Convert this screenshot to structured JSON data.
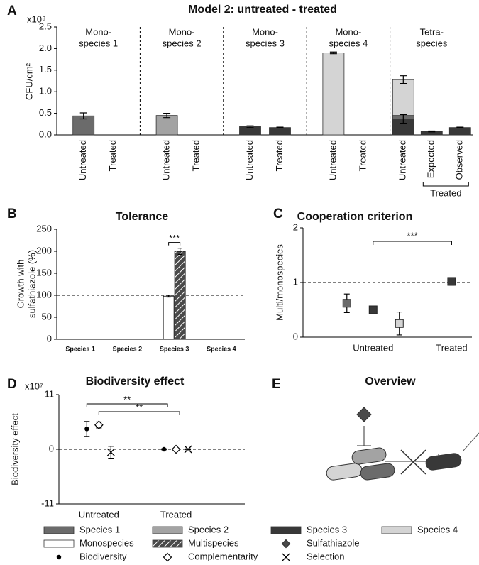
{
  "chart_data": [
    {
      "panel": "A",
      "type": "bar",
      "title": "Model 2: untreated - treated",
      "scale_label": "x10⁸",
      "y_label": "CFU/cm²",
      "ylim": [
        0,
        2.5
      ],
      "yticks": [
        {
          "value": 0,
          "label": "0.0"
        },
        0.5,
        {
          "value": 1,
          "label": "1.0"
        },
        1.5,
        {
          "value": 2,
          "label": "2.0"
        },
        2.5
      ],
      "groups": [
        {
          "label": [
            "Mono-",
            "species 1"
          ],
          "bars": [
            {
              "category": "Untreated",
              "segments": [
                {
                  "value": 0.44,
                  "error": 0.07,
                  "color": "#6b6b6b"
                }
              ]
            },
            {
              "category": "Treated",
              "segments": [
                {
                  "value": 0,
                  "color": "#6b6b6b"
                }
              ]
            }
          ]
        },
        {
          "label": [
            "Mono-",
            "species 2"
          ],
          "bars": [
            {
              "category": "Untreated",
              "segments": [
                {
                  "value": 0.45,
                  "error": 0.05,
                  "color": "#a3a3a3"
                }
              ]
            },
            {
              "category": "Treated",
              "segments": [
                {
                  "value": 0,
                  "color": "#a3a3a3"
                }
              ]
            }
          ]
        },
        {
          "label": [
            "Mono-",
            "species 3"
          ],
          "bars": [
            {
              "category": "Untreated",
              "segments": [
                {
                  "value": 0.19,
                  "error": 0.02,
                  "color": "#383838"
                }
              ]
            },
            {
              "category": "Treated",
              "segments": [
                {
                  "value": 0.17,
                  "error": 0.01,
                  "color": "#383838"
                }
              ]
            }
          ]
        },
        {
          "label": [
            "Mono-",
            "species 4"
          ],
          "bars": [
            {
              "category": "Untreated",
              "segments": [
                {
                  "value": 1.9,
                  "error": 0.02,
                  "color": "#d4d4d4"
                }
              ]
            },
            {
              "category": "Treated",
              "segments": [
                {
                  "value": 0,
                  "color": "#d4d4d4"
                }
              ]
            }
          ]
        },
        {
          "label": [
            "Tetra-",
            "species"
          ],
          "bars": [
            {
              "category": "Untreated",
              "segments": [
                {
                  "value": 0.37,
                  "error": 0.1,
                  "color": "#383838"
                },
                {
                  "value": 0.08,
                  "color": "#6b6b6b"
                },
                {
                  "value": 0.83,
                  "error": 0.09,
                  "color": "#d4d4d4"
                }
              ]
            },
            {
              "category": "Expected",
              "segments": [
                {
                  "value": 0.08,
                  "error": 0.01,
                  "color": "#383838"
                }
              ]
            },
            {
              "category": "Observed",
              "segments": [
                {
                  "value": 0.17,
                  "error": 0.01,
                  "color": "#383838"
                }
              ]
            }
          ]
        }
      ],
      "bracket_label": "Treated"
    },
    {
      "panel": "B",
      "type": "bar",
      "title": "Tolerance",
      "y_label": [
        "Growth with",
        "sulfathiazole (%)"
      ],
      "ylim": [
        0,
        250
      ],
      "yticks": [
        0,
        50,
        100,
        150,
        200,
        250
      ],
      "categories": [
        "Species 1",
        "Species 2",
        "Species 3",
        "Species 4"
      ],
      "series": [
        {
          "color": "#ffffff",
          "values": [
            null,
            null,
            98,
            null
          ],
          "errors": [
            null,
            null,
            2,
            null
          ]
        },
        {
          "color": "#4a4a4a",
          "pattern": "hatch",
          "values": [
            null,
            null,
            200,
            null
          ],
          "errors": [
            null,
            null,
            7,
            null
          ]
        }
      ],
      "reference_line": 100,
      "annotation": "***"
    },
    {
      "panel": "C",
      "type": "scatter",
      "title": "Cooperation criterion",
      "y_label": "Multi/monospecies",
      "ylim": [
        0,
        2
      ],
      "yticks": [
        0,
        1,
        2
      ],
      "categories": [
        "Untreated",
        "Treated"
      ],
      "series": [
        {
          "color": "#6b6b6b",
          "values": [
            0.62,
            null
          ],
          "errors": [
            0.17,
            null
          ]
        },
        {
          "color": "#383838",
          "values": [
            0.5,
            1.02
          ],
          "errors": [
            0.05,
            0.07
          ]
        },
        {
          "color": "#d4d4d4",
          "values": [
            0.25,
            null
          ],
          "errors": [
            0.21,
            null
          ]
        }
      ],
      "reference_line": 1,
      "annotation": "***"
    },
    {
      "panel": "D",
      "type": "scatter",
      "title": "Biodiversity effect",
      "scale_label": "x10⁷",
      "y_label": "Biodiversity effect",
      "ylim": [
        -11,
        11
      ],
      "yticks": [
        -11,
        0,
        11
      ],
      "categories": [
        "Untreated",
        "Treated"
      ],
      "series": [
        {
          "marker": "dot",
          "values": [
            4.1,
            0
          ],
          "errors": [
            1.5,
            0.1
          ]
        },
        {
          "marker": "open-diamond",
          "values": [
            4.9,
            0
          ],
          "errors": [
            0.6,
            0.1
          ]
        },
        {
          "marker": "cross",
          "values": [
            -0.6,
            0
          ],
          "errors": [
            1.2,
            0.1
          ]
        }
      ],
      "reference_line": 0,
      "annotations": [
        "**",
        "**"
      ]
    }
  ],
  "diagram": {
    "panel": "E",
    "title": "Overview"
  },
  "legend": [
    {
      "name": "Species 1",
      "marker": "rect",
      "color": "#6b6b6b"
    },
    {
      "name": "Species 2",
      "marker": "rect",
      "color": "#a3a3a3"
    },
    {
      "name": "Species 3",
      "marker": "rect",
      "color": "#383838"
    },
    {
      "name": "Species 4",
      "marker": "rect",
      "color": "#d4d4d4"
    },
    {
      "name": "Monospecies",
      "marker": "rect",
      "color": "#ffffff"
    },
    {
      "name": "Multispecies",
      "marker": "hatch",
      "color": "#4a4a4a"
    },
    {
      "name": "Sulfathiazole",
      "marker": "diamond",
      "color": "#4a4a4a"
    },
    {
      "name": "Biodiversity",
      "marker": "dot",
      "color": "#000000"
    },
    {
      "name": "Complementarity",
      "marker": "open-diamond",
      "color": "#000000"
    },
    {
      "name": "Selection",
      "marker": "cross",
      "color": "#000000"
    }
  ]
}
